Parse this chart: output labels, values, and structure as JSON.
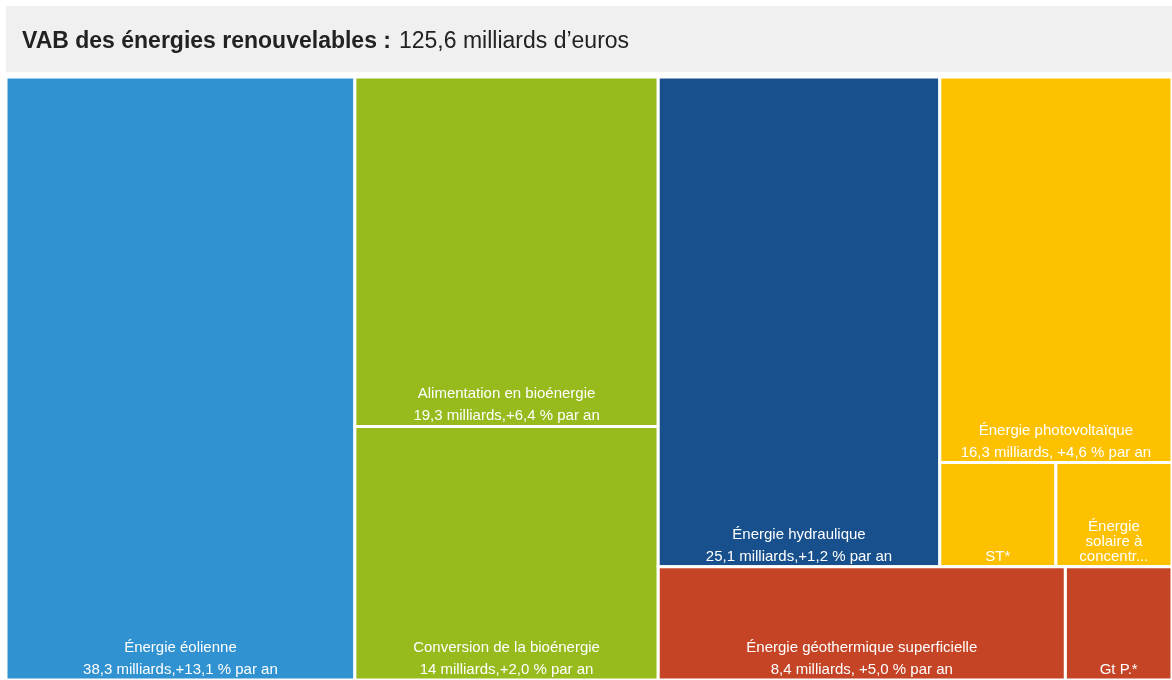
{
  "chart_data": {
    "type": "other",
    "title": "VAB des énergies renouvelables :",
    "subtitle": "125,6 milliards d’euros",
    "categories": [
      "Énergie éolienne",
      "Alimentation en bioénergie",
      "Conversion de la bioénergie",
      "Énergie hydraulique",
      "Énergie géothermique superficielle",
      "Gt P.*",
      "Énergie photovoltaïque",
      "ST*",
      "Énergie solaire à concentr..."
    ],
    "values": [
      38.3,
      19.3,
      14,
      25.1,
      8.4,
      null,
      16.3,
      null,
      null
    ],
    "value_labels": [
      "38,3 milliards,+13,1 % par an",
      "19,3 milliards,+6,4 % par an",
      "14 milliards,+2,0 % par an",
      "25,1 milliards,+1,2 % par an",
      "8,4 milliards, +5,0 % par an",
      null,
      "16,3 milliards, +4,6 % par an",
      null,
      null
    ],
    "colors": [
      "#3092d0",
      "#97ba1d",
      "#97ba1d",
      "#17508c",
      "#c54426",
      "#c54426",
      "#fdc100",
      "#fdc100",
      "#fdc100"
    ]
  }
}
